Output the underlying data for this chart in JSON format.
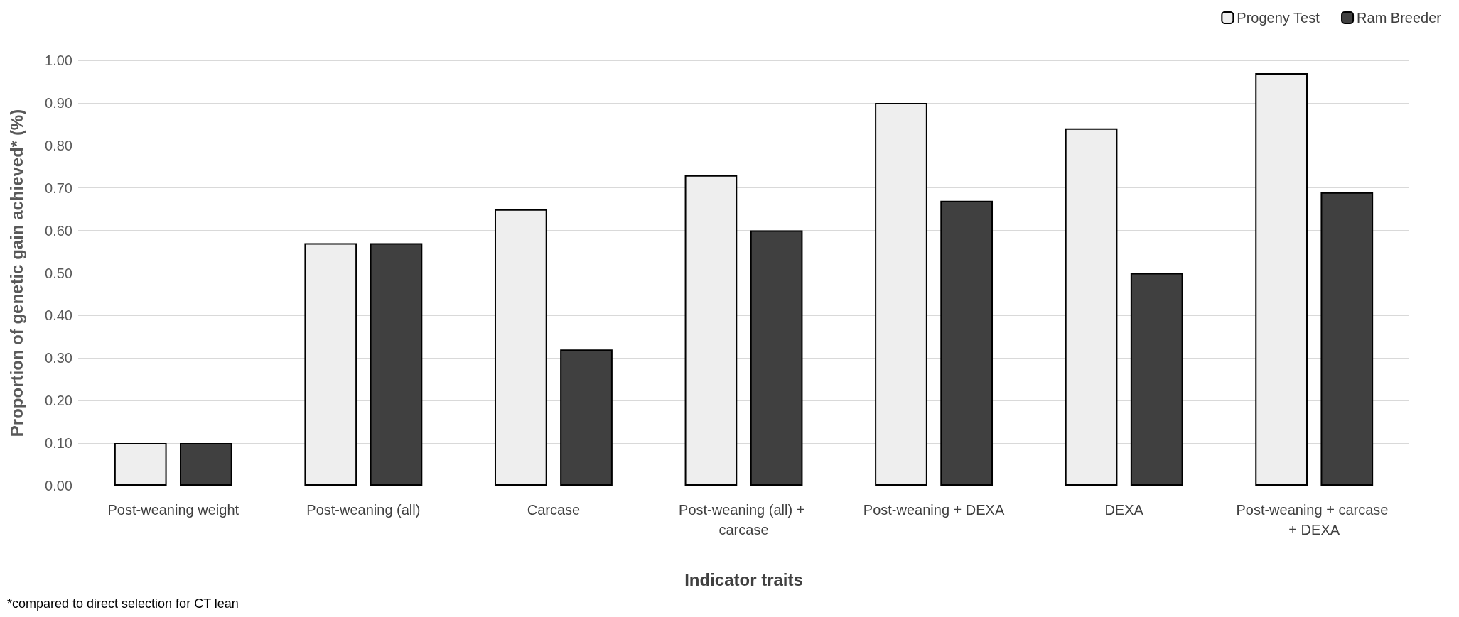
{
  "chart_data": {
    "type": "bar",
    "xlabel": "Indicator traits",
    "ylabel": "Proportion of genetic gain achieved* (%)",
    "categories": [
      "Post-weaning weight",
      "Post-weaning (all)",
      "Carcase",
      "Post-weaning (all) + carcase",
      "Post-weaning + DEXA",
      "DEXA",
      "Post-weaning + carcase + DEXA"
    ],
    "series": [
      {
        "name": "Progeny Test",
        "color": "#eeeeee",
        "values": [
          0.1,
          0.57,
          0.65,
          0.73,
          0.9,
          0.84,
          0.97
        ]
      },
      {
        "name": "Ram Breeder",
        "color": "#404040",
        "values": [
          0.1,
          0.57,
          0.32,
          0.6,
          0.67,
          0.5,
          0.69
        ]
      }
    ],
    "ylim": [
      0,
      1
    ],
    "yticks": [
      {
        "value": 0,
        "label": "0.00"
      },
      {
        "value": 0.1,
        "label": "0.10"
      },
      {
        "value": 0.2,
        "label": "0.20"
      },
      {
        "value": 0.3,
        "label": "0.30"
      },
      {
        "value": 0.4,
        "label": "0.40"
      },
      {
        "value": 0.5,
        "label": "0.50"
      },
      {
        "value": 0.6,
        "label": "0.60"
      },
      {
        "value": 0.7,
        "label": "0.70"
      },
      {
        "value": 0.8,
        "label": "0.80"
      },
      {
        "value": 0.9,
        "label": "0.90"
      },
      {
        "value": 1,
        "label": "1.00"
      }
    ],
    "grid": "y",
    "legend": "top right",
    "annotations": [
      "*compared to direct selection for CT lean"
    ]
  }
}
